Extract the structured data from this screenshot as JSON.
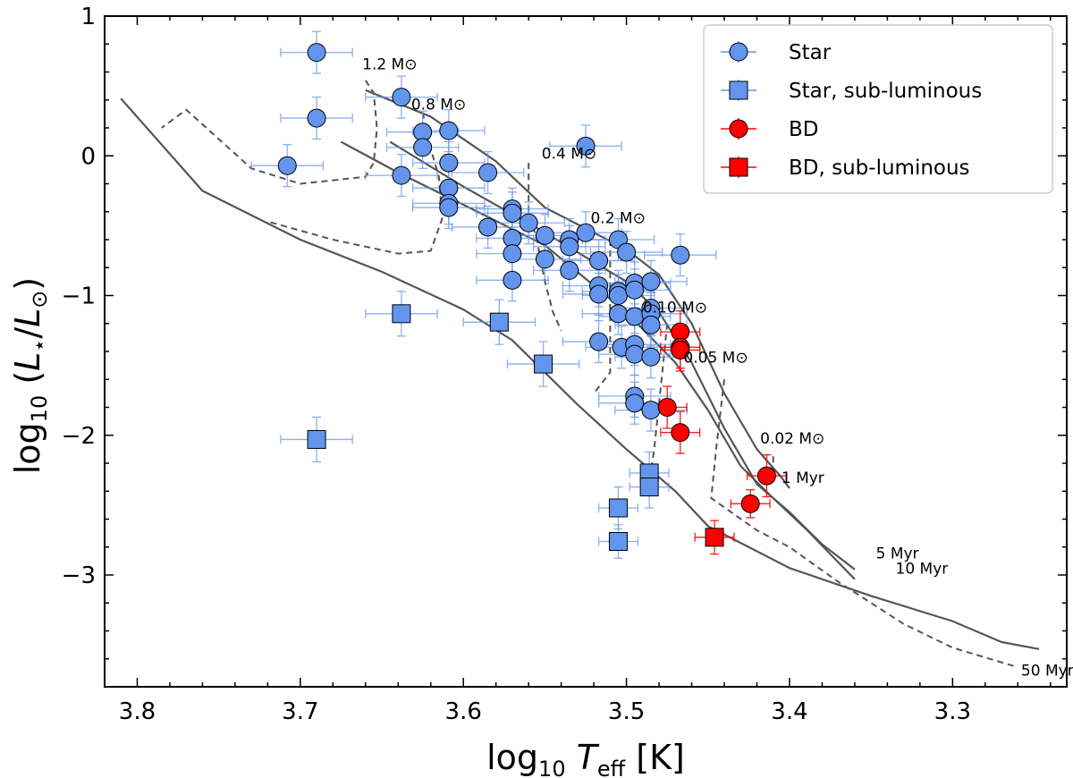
{
  "chart_data": {
    "type": "scatter",
    "title": "",
    "xlabel": "log10 Teff [K]",
    "ylabel": "log10 (L*/L⊙)",
    "xlim": [
      3.82,
      3.23
    ],
    "ylim": [
      -3.8,
      1.0
    ],
    "x_reversed": true,
    "grid": false,
    "xticks": [
      3.8,
      3.7,
      3.6,
      3.5,
      3.4,
      3.3
    ],
    "xtick_labels": [
      "3.8",
      "3.7",
      "3.6",
      "3.5",
      "3.4",
      "3.3"
    ],
    "yticks": [
      1,
      0,
      -1,
      -2,
      -3
    ],
    "ytick_labels": [
      "1",
      "0",
      "−1",
      "−2",
      "−3"
    ],
    "legend_position": "top-right",
    "legend": [
      {
        "label": "Star",
        "marker": "circle",
        "color": "#6495ED"
      },
      {
        "label": "Star, sub-luminous",
        "marker": "square",
        "color": "#6495ED"
      },
      {
        "label": "BD",
        "marker": "circle",
        "color": "#FF0000"
      },
      {
        "label": "BD, sub-luminous",
        "marker": "square",
        "color": "#FF0000"
      }
    ],
    "colors": {
      "star_fill": "#6495ED",
      "star_err": "#6495ED",
      "bd_fill": "#FF0000",
      "bd_err": "#FF0000",
      "track": "#555555",
      "edge": "#000000"
    },
    "series": [
      {
        "name": "Star",
        "marker": "circle",
        "points": [
          {
            "x": 3.69,
            "y": 0.74,
            "xerr": 0.022,
            "yerr": 0.15
          },
          {
            "x": 3.69,
            "y": 0.27,
            "xerr": 0.022,
            "yerr": 0.15
          },
          {
            "x": 3.708,
            "y": -0.07,
            "xerr": 0.022,
            "yerr": 0.15
          },
          {
            "x": 3.638,
            "y": 0.42,
            "xerr": 0.022,
            "yerr": 0.15
          },
          {
            "x": 3.638,
            "y": -0.14,
            "xerr": 0.022,
            "yerr": 0.15
          },
          {
            "x": 3.625,
            "y": 0.17,
            "xerr": 0.022,
            "yerr": 0.15
          },
          {
            "x": 3.625,
            "y": 0.06,
            "xerr": 0.022,
            "yerr": 0.15
          },
          {
            "x": 3.609,
            "y": 0.18,
            "xerr": 0.022,
            "yerr": 0.15
          },
          {
            "x": 3.609,
            "y": -0.05,
            "xerr": 0.022,
            "yerr": 0.15
          },
          {
            "x": 3.609,
            "y": -0.23,
            "xerr": 0.022,
            "yerr": 0.15
          },
          {
            "x": 3.609,
            "y": -0.34,
            "xerr": 0.022,
            "yerr": 0.15
          },
          {
            "x": 3.609,
            "y": -0.37,
            "xerr": 0.022,
            "yerr": 0.15
          },
          {
            "x": 3.585,
            "y": -0.12,
            "xerr": 0.022,
            "yerr": 0.15
          },
          {
            "x": 3.585,
            "y": -0.51,
            "xerr": 0.022,
            "yerr": 0.15
          },
          {
            "x": 3.525,
            "y": 0.07,
            "xerr": 0.022,
            "yerr": 0.15
          },
          {
            "x": 3.57,
            "y": -0.38,
            "xerr": 0.022,
            "yerr": 0.15
          },
          {
            "x": 3.57,
            "y": -0.41,
            "xerr": 0.022,
            "yerr": 0.15
          },
          {
            "x": 3.57,
            "y": -0.59,
            "xerr": 0.022,
            "yerr": 0.15
          },
          {
            "x": 3.57,
            "y": -0.7,
            "xerr": 0.022,
            "yerr": 0.15
          },
          {
            "x": 3.57,
            "y": -0.89,
            "xerr": 0.022,
            "yerr": 0.15
          },
          {
            "x": 3.56,
            "y": -0.48,
            "xerr": 0.022,
            "yerr": 0.15
          },
          {
            "x": 3.55,
            "y": -0.57,
            "xerr": 0.022,
            "yerr": 0.15
          },
          {
            "x": 3.55,
            "y": -0.74,
            "xerr": 0.022,
            "yerr": 0.15
          },
          {
            "x": 3.525,
            "y": -0.55,
            "xerr": 0.022,
            "yerr": 0.15
          },
          {
            "x": 3.535,
            "y": -0.6,
            "xerr": 0.022,
            "yerr": 0.15
          },
          {
            "x": 3.535,
            "y": -0.65,
            "xerr": 0.022,
            "yerr": 0.15
          },
          {
            "x": 3.535,
            "y": -0.82,
            "xerr": 0.022,
            "yerr": 0.15
          },
          {
            "x": 3.517,
            "y": -0.75,
            "xerr": 0.022,
            "yerr": 0.15
          },
          {
            "x": 3.517,
            "y": -0.93,
            "xerr": 0.022,
            "yerr": 0.15
          },
          {
            "x": 3.517,
            "y": -0.99,
            "xerr": 0.022,
            "yerr": 0.15
          },
          {
            "x": 3.505,
            "y": -0.6,
            "xerr": 0.022,
            "yerr": 0.15
          },
          {
            "x": 3.5,
            "y": -0.69,
            "xerr": 0.022,
            "yerr": 0.15
          },
          {
            "x": 3.505,
            "y": -0.97,
            "xerr": 0.022,
            "yerr": 0.15
          },
          {
            "x": 3.505,
            "y": -1.0,
            "xerr": 0.022,
            "yerr": 0.15
          },
          {
            "x": 3.505,
            "y": -1.13,
            "xerr": 0.022,
            "yerr": 0.15
          },
          {
            "x": 3.517,
            "y": -1.33,
            "xerr": 0.022,
            "yerr": 0.15
          },
          {
            "x": 3.503,
            "y": -1.37,
            "xerr": 0.022,
            "yerr": 0.15
          },
          {
            "x": 3.495,
            "y": -0.91,
            "xerr": 0.022,
            "yerr": 0.15
          },
          {
            "x": 3.495,
            "y": -0.96,
            "xerr": 0.022,
            "yerr": 0.15
          },
          {
            "x": 3.495,
            "y": -1.15,
            "xerr": 0.022,
            "yerr": 0.15
          },
          {
            "x": 3.495,
            "y": -1.35,
            "xerr": 0.022,
            "yerr": 0.15
          },
          {
            "x": 3.495,
            "y": -1.42,
            "xerr": 0.022,
            "yerr": 0.15
          },
          {
            "x": 3.495,
            "y": -1.72,
            "xerr": 0.022,
            "yerr": 0.15
          },
          {
            "x": 3.495,
            "y": -1.77,
            "xerr": 0.022,
            "yerr": 0.15
          },
          {
            "x": 3.485,
            "y": -0.9,
            "xerr": 0.022,
            "yerr": 0.15
          },
          {
            "x": 3.485,
            "y": -1.09,
            "xerr": 0.022,
            "yerr": 0.15
          },
          {
            "x": 3.485,
            "y": -1.13,
            "xerr": 0.022,
            "yerr": 0.15
          },
          {
            "x": 3.485,
            "y": -1.21,
            "xerr": 0.022,
            "yerr": 0.15
          },
          {
            "x": 3.485,
            "y": -1.44,
            "xerr": 0.022,
            "yerr": 0.15
          },
          {
            "x": 3.485,
            "y": -1.82,
            "xerr": 0.022,
            "yerr": 0.15
          },
          {
            "x": 3.467,
            "y": -0.71,
            "xerr": 0.022,
            "yerr": 0.15
          }
        ]
      },
      {
        "name": "Star, sub-luminous",
        "marker": "square",
        "points": [
          {
            "x": 3.638,
            "y": -1.13,
            "xerr": 0.022,
            "yerr": 0.16
          },
          {
            "x": 3.578,
            "y": -1.19,
            "xerr": 0.022,
            "yerr": 0.16
          },
          {
            "x": 3.551,
            "y": -1.49,
            "xerr": 0.022,
            "yerr": 0.16
          },
          {
            "x": 3.69,
            "y": -2.03,
            "xerr": 0.022,
            "yerr": 0.16
          },
          {
            "x": 3.505,
            "y": -2.52,
            "xerr": 0.012,
            "yerr": 0.15
          },
          {
            "x": 3.505,
            "y": -2.76,
            "xerr": 0.012,
            "yerr": 0.12
          },
          {
            "x": 3.486,
            "y": -2.27,
            "xerr": 0.012,
            "yerr": 0.15
          },
          {
            "x": 3.486,
            "y": -2.37,
            "xerr": 0.012,
            "yerr": 0.15
          }
        ]
      },
      {
        "name": "BD",
        "marker": "circle",
        "points": [
          {
            "x": 3.467,
            "y": -1.26,
            "xerr": 0.012,
            "yerr": 0.15
          },
          {
            "x": 3.467,
            "y": -1.37,
            "xerr": 0.012,
            "yerr": 0.15
          },
          {
            "x": 3.467,
            "y": -1.39,
            "xerr": 0.012,
            "yerr": 0.15
          },
          {
            "x": 3.475,
            "y": -1.8,
            "xerr": 0.012,
            "yerr": 0.15
          },
          {
            "x": 3.467,
            "y": -1.98,
            "xerr": 0.012,
            "yerr": 0.15
          },
          {
            "x": 3.414,
            "y": -2.29,
            "xerr": 0.012,
            "yerr": 0.15
          },
          {
            "x": 3.424,
            "y": -2.49,
            "xerr": 0.012,
            "yerr": 0.1
          }
        ]
      },
      {
        "name": "BD, sub-luminous",
        "marker": "square",
        "points": [
          {
            "x": 3.446,
            "y": -2.73,
            "xerr": 0.012,
            "yerr": 0.12
          }
        ]
      }
    ],
    "isochrones": [
      {
        "label": "1 Myr",
        "label_x": 3.405,
        "label_y": -2.34,
        "points": [
          [
            3.66,
            0.47
          ],
          [
            3.62,
            0.28
          ],
          [
            3.58,
            -0.04
          ],
          [
            3.55,
            -0.37
          ],
          [
            3.5,
            -0.67
          ],
          [
            3.48,
            -0.85
          ],
          [
            3.46,
            -1.2
          ],
          [
            3.44,
            -1.7
          ],
          [
            3.42,
            -2.1
          ],
          [
            3.405,
            -2.3
          ],
          [
            3.4,
            -2.38
          ]
        ]
      },
      {
        "label": "5 Myr",
        "label_x": 3.347,
        "label_y": -2.88,
        "points": [
          [
            3.645,
            0.1
          ],
          [
            3.6,
            -0.22
          ],
          [
            3.55,
            -0.55
          ],
          [
            3.5,
            -0.9
          ],
          [
            3.48,
            -1.12
          ],
          [
            3.46,
            -1.48
          ],
          [
            3.44,
            -1.95
          ],
          [
            3.42,
            -2.35
          ],
          [
            3.4,
            -2.55
          ],
          [
            3.38,
            -2.78
          ],
          [
            3.36,
            -2.96
          ]
        ]
      },
      {
        "label": "10 Myr",
        "label_x": 3.335,
        "label_y": -2.99,
        "points": [
          [
            3.675,
            0.1
          ],
          [
            3.64,
            -0.12
          ],
          [
            3.6,
            -0.35
          ],
          [
            3.55,
            -0.64
          ],
          [
            3.5,
            -1.12
          ],
          [
            3.47,
            -1.48
          ],
          [
            3.45,
            -1.82
          ],
          [
            3.43,
            -2.22
          ],
          [
            3.41,
            -2.45
          ],
          [
            3.39,
            -2.67
          ],
          [
            3.36,
            -3.03
          ]
        ]
      },
      {
        "label": "50 Myr",
        "label_x": 3.258,
        "label_y": -3.72,
        "points": [
          [
            3.81,
            0.41
          ],
          [
            3.76,
            -0.25
          ],
          [
            3.7,
            -0.6
          ],
          [
            3.65,
            -0.83
          ],
          [
            3.6,
            -1.1
          ],
          [
            3.57,
            -1.32
          ],
          [
            3.53,
            -1.78
          ],
          [
            3.5,
            -2.1
          ],
          [
            3.47,
            -2.4
          ],
          [
            3.45,
            -2.65
          ],
          [
            3.4,
            -2.95
          ],
          [
            3.35,
            -3.15
          ],
          [
            3.3,
            -3.33
          ],
          [
            3.27,
            -3.48
          ],
          [
            3.247,
            -3.53
          ]
        ]
      }
    ],
    "mass_tracks": [
      {
        "label": "1.2 M⊙",
        "label_x": 3.662,
        "label_y": 0.62,
        "points": [
          [
            3.66,
            0.54
          ],
          [
            3.655,
            0.45
          ],
          [
            3.653,
            0.2
          ],
          [
            3.655,
            -0.05
          ],
          [
            3.66,
            -0.15
          ],
          [
            3.7,
            -0.2
          ],
          [
            3.73,
            -0.09
          ],
          [
            3.77,
            0.33
          ],
          [
            3.785,
            0.2
          ]
        ]
      },
      {
        "label": "0.8 M⊙",
        "label_x": 3.632,
        "label_y": 0.33,
        "points": [
          [
            3.625,
            0.31
          ],
          [
            3.62,
            0.05
          ],
          [
            3.615,
            -0.15
          ],
          [
            3.613,
            -0.45
          ],
          [
            3.62,
            -0.68
          ],
          [
            3.64,
            -0.7
          ],
          [
            3.68,
            -0.6
          ],
          [
            3.72,
            -0.47
          ]
        ]
      },
      {
        "label": "0.4 M⊙",
        "label_x": 3.552,
        "label_y": -0.02,
        "points": [
          [
            3.56,
            -0.05
          ],
          [
            3.56,
            -0.4
          ],
          [
            3.555,
            -0.6
          ],
          [
            3.55,
            -0.9
          ],
          [
            3.545,
            -1.12
          ],
          [
            3.54,
            -1.25
          ]
        ]
      },
      {
        "label": "0.2 M⊙",
        "label_x": 3.522,
        "label_y": -0.48,
        "points": [
          [
            3.51,
            -0.6
          ],
          [
            3.51,
            -1.2
          ],
          [
            3.51,
            -1.55
          ],
          [
            3.52,
            -1.7
          ]
        ]
      },
      {
        "label": "0.10 M⊙",
        "label_x": 3.49,
        "label_y": -1.12,
        "points": [
          [
            3.475,
            -1.2
          ],
          [
            3.478,
            -1.55
          ],
          [
            3.483,
            -2.1
          ],
          [
            3.486,
            -2.35
          ]
        ]
      },
      {
        "label": "0.05 M⊙",
        "label_x": 3.465,
        "label_y": -1.48,
        "points": [
          [
            3.44,
            -1.6
          ],
          [
            3.445,
            -2.1
          ],
          [
            3.448,
            -2.45
          ],
          [
            3.42,
            -2.68
          ],
          [
            3.4,
            -2.8
          ],
          [
            3.37,
            -3.05
          ],
          [
            3.33,
            -3.35
          ],
          [
            3.3,
            -3.52
          ],
          [
            3.26,
            -3.66
          ]
        ]
      },
      {
        "label": "0.02 M⊙",
        "label_x": 3.418,
        "label_y": -2.06,
        "points": [
          [
            3.41,
            -2.15
          ],
          [
            3.41,
            -2.32
          ]
        ]
      }
    ]
  }
}
